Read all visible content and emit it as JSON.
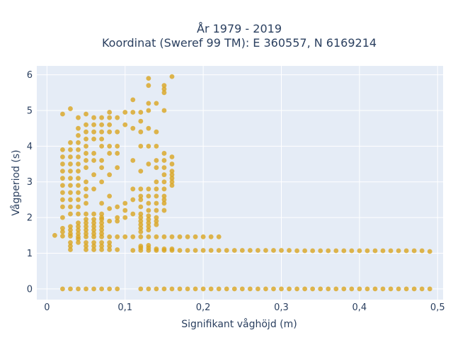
{
  "chart_data": {
    "type": "scatter",
    "title_line1": "År 1979 - 2019",
    "title_line2": "Koordinat (Sweref 99 TM): E 360557, N 6169214",
    "xlabel": "Signifikant våghöjd (m)",
    "ylabel": "Vågperiod (s)",
    "xlim": [
      -0.013,
      0.507
    ],
    "ylim": [
      -0.3,
      6.25
    ],
    "x_ticks": [
      0,
      0.1,
      0.2,
      0.3,
      0.4,
      0.5
    ],
    "x_tick_labels": [
      "0",
      "0,1",
      "0,2",
      "0,3",
      "0,4",
      "0,5"
    ],
    "y_ticks": [
      0,
      1,
      2,
      3,
      4,
      5,
      6
    ],
    "y_tick_labels": [
      "0",
      "1",
      "2",
      "3",
      "4",
      "5",
      "6"
    ],
    "grid": true,
    "legend": "none",
    "marker_color": "#DAA520",
    "plot_bg": "#E5ECF6",
    "series": [
      {
        "points": [
          [
            0.02,
            0.0
          ],
          [
            0.03,
            0.0
          ],
          [
            0.04,
            0.0
          ],
          [
            0.05,
            0.0
          ],
          [
            0.06,
            0.0
          ],
          [
            0.07,
            0.0
          ],
          [
            0.08,
            0.0
          ],
          [
            0.09,
            0.0
          ],
          [
            0.12,
            0.0
          ],
          [
            0.13,
            0.0
          ],
          [
            0.14,
            0.0
          ],
          [
            0.15,
            0.0
          ],
          [
            0.16,
            0.0
          ],
          [
            0.17,
            0.0
          ],
          [
            0.18,
            0.0
          ],
          [
            0.19,
            0.0
          ],
          [
            0.2,
            0.0
          ],
          [
            0.21,
            0.0
          ],
          [
            0.22,
            0.0
          ],
          [
            0.23,
            0.0
          ],
          [
            0.24,
            0.0
          ],
          [
            0.25,
            0.0
          ],
          [
            0.26,
            0.0
          ],
          [
            0.27,
            0.0
          ],
          [
            0.28,
            0.0
          ],
          [
            0.29,
            0.0
          ],
          [
            0.3,
            0.0
          ],
          [
            0.31,
            0.0
          ],
          [
            0.32,
            0.0
          ],
          [
            0.33,
            0.0
          ],
          [
            0.34,
            0.0
          ],
          [
            0.35,
            0.0
          ],
          [
            0.36,
            0.0
          ],
          [
            0.37,
            0.0
          ],
          [
            0.38,
            0.0
          ],
          [
            0.39,
            0.0
          ],
          [
            0.4,
            0.0
          ],
          [
            0.41,
            0.0
          ],
          [
            0.42,
            0.0
          ],
          [
            0.43,
            0.0
          ],
          [
            0.44,
            0.0
          ],
          [
            0.45,
            0.0
          ],
          [
            0.46,
            0.0
          ],
          [
            0.47,
            0.0
          ],
          [
            0.48,
            0.0
          ],
          [
            0.49,
            0.0
          ],
          [
            0.11,
            1.08
          ],
          [
            0.12,
            1.08
          ],
          [
            0.13,
            1.08
          ],
          [
            0.14,
            1.08
          ],
          [
            0.15,
            1.08
          ],
          [
            0.16,
            1.08
          ],
          [
            0.17,
            1.08
          ],
          [
            0.18,
            1.08
          ],
          [
            0.19,
            1.08
          ],
          [
            0.2,
            1.08
          ],
          [
            0.21,
            1.08
          ],
          [
            0.22,
            1.08
          ],
          [
            0.23,
            1.08
          ],
          [
            0.24,
            1.08
          ],
          [
            0.25,
            1.08
          ],
          [
            0.26,
            1.08
          ],
          [
            0.27,
            1.08
          ],
          [
            0.28,
            1.08
          ],
          [
            0.29,
            1.08
          ],
          [
            0.3,
            1.08
          ],
          [
            0.31,
            1.08
          ],
          [
            0.32,
            1.07
          ],
          [
            0.33,
            1.07
          ],
          [
            0.34,
            1.07
          ],
          [
            0.35,
            1.07
          ],
          [
            0.36,
            1.07
          ],
          [
            0.37,
            1.07
          ],
          [
            0.38,
            1.07
          ],
          [
            0.39,
            1.07
          ],
          [
            0.4,
            1.07
          ],
          [
            0.41,
            1.07
          ],
          [
            0.42,
            1.07
          ],
          [
            0.43,
            1.07
          ],
          [
            0.44,
            1.07
          ],
          [
            0.45,
            1.07
          ],
          [
            0.46,
            1.07
          ],
          [
            0.47,
            1.07
          ],
          [
            0.48,
            1.07
          ],
          [
            0.49,
            1.05
          ],
          [
            0.12,
            1.15
          ],
          [
            0.13,
            1.15
          ],
          [
            0.14,
            1.12
          ],
          [
            0.15,
            1.12
          ],
          [
            0.16,
            1.12
          ],
          [
            0.12,
            1.2
          ],
          [
            0.13,
            1.22
          ],
          [
            0.01,
            1.5
          ],
          [
            0.02,
            1.48
          ],
          [
            0.03,
            1.48
          ],
          [
            0.04,
            1.46
          ],
          [
            0.05,
            1.46
          ],
          [
            0.06,
            1.46
          ],
          [
            0.07,
            1.46
          ],
          [
            0.08,
            1.46
          ],
          [
            0.09,
            1.46
          ],
          [
            0.1,
            1.46
          ],
          [
            0.11,
            1.46
          ],
          [
            0.12,
            1.46
          ],
          [
            0.13,
            1.46
          ],
          [
            0.14,
            1.46
          ],
          [
            0.15,
            1.46
          ],
          [
            0.16,
            1.46
          ],
          [
            0.17,
            1.46
          ],
          [
            0.18,
            1.46
          ],
          [
            0.19,
            1.46
          ],
          [
            0.2,
            1.46
          ],
          [
            0.21,
            1.46
          ],
          [
            0.22,
            1.46
          ],
          [
            0.02,
            1.6
          ],
          [
            0.02,
            1.7
          ],
          [
            0.03,
            1.55
          ],
          [
            0.03,
            1.65
          ],
          [
            0.03,
            1.75
          ],
          [
            0.03,
            1.2
          ],
          [
            0.03,
            1.1
          ],
          [
            0.03,
            1.3
          ],
          [
            0.04,
            1.3
          ],
          [
            0.04,
            1.4
          ],
          [
            0.04,
            1.55
          ],
          [
            0.04,
            1.65
          ],
          [
            0.04,
            1.75
          ],
          [
            0.04,
            1.85
          ],
          [
            0.05,
            1.1
          ],
          [
            0.05,
            1.2
          ],
          [
            0.05,
            1.3
          ],
          [
            0.05,
            1.55
          ],
          [
            0.05,
            1.65
          ],
          [
            0.05,
            1.75
          ],
          [
            0.05,
            1.85
          ],
          [
            0.05,
            1.95
          ],
          [
            0.05,
            2.1
          ],
          [
            0.06,
            1.1
          ],
          [
            0.06,
            1.2
          ],
          [
            0.06,
            1.3
          ],
          [
            0.06,
            1.55
          ],
          [
            0.06,
            1.65
          ],
          [
            0.06,
            1.75
          ],
          [
            0.06,
            1.85
          ],
          [
            0.06,
            1.95
          ],
          [
            0.06,
            2.1
          ],
          [
            0.07,
            1.1
          ],
          [
            0.07,
            1.2
          ],
          [
            0.07,
            1.3
          ],
          [
            0.07,
            1.55
          ],
          [
            0.07,
            1.65
          ],
          [
            0.07,
            1.75
          ],
          [
            0.07,
            1.85
          ],
          [
            0.07,
            1.95
          ],
          [
            0.07,
            2.1
          ],
          [
            0.08,
            1.1
          ],
          [
            0.08,
            1.2
          ],
          [
            0.08,
            1.3
          ],
          [
            0.08,
            1.9
          ],
          [
            0.08,
            2.25
          ],
          [
            0.09,
            1.1
          ],
          [
            0.09,
            1.9
          ],
          [
            0.12,
            1.6
          ],
          [
            0.12,
            1.7
          ],
          [
            0.12,
            1.8
          ],
          [
            0.12,
            1.9
          ],
          [
            0.12,
            2.0
          ],
          [
            0.12,
            2.1
          ],
          [
            0.12,
            2.3
          ],
          [
            0.12,
            2.5
          ],
          [
            0.12,
            2.6
          ],
          [
            0.13,
            1.65
          ],
          [
            0.13,
            1.75
          ],
          [
            0.13,
            1.85
          ],
          [
            0.13,
            1.95
          ],
          [
            0.13,
            2.05
          ],
          [
            0.13,
            2.2
          ],
          [
            0.13,
            2.4
          ],
          [
            0.13,
            2.6
          ],
          [
            0.13,
            2.8
          ],
          [
            0.14,
            1.8
          ],
          [
            0.14,
            1.9
          ],
          [
            0.14,
            2.0
          ],
          [
            0.14,
            2.2
          ],
          [
            0.14,
            2.4
          ],
          [
            0.14,
            2.6
          ],
          [
            0.14,
            2.8
          ],
          [
            0.14,
            3.0
          ],
          [
            0.15,
            2.2
          ],
          [
            0.15,
            2.4
          ],
          [
            0.15,
            2.6
          ],
          [
            0.15,
            2.8
          ],
          [
            0.15,
            3.0
          ],
          [
            0.15,
            3.2
          ],
          [
            0.15,
            3.4
          ],
          [
            0.15,
            3.6
          ],
          [
            0.16,
            2.9
          ],
          [
            0.16,
            3.1
          ],
          [
            0.16,
            3.3
          ],
          [
            0.16,
            3.5
          ],
          [
            0.16,
            3.7
          ],
          [
            0.02,
            2.3
          ],
          [
            0.02,
            2.5
          ],
          [
            0.02,
            2.7
          ],
          [
            0.02,
            2.9
          ],
          [
            0.02,
            3.1
          ],
          [
            0.02,
            3.3
          ],
          [
            0.02,
            3.5
          ],
          [
            0.02,
            3.7
          ],
          [
            0.02,
            3.9
          ],
          [
            0.02,
            4.9
          ],
          [
            0.02,
            2.0
          ],
          [
            0.03,
            2.1
          ],
          [
            0.03,
            2.3
          ],
          [
            0.03,
            2.5
          ],
          [
            0.03,
            2.7
          ],
          [
            0.03,
            2.9
          ],
          [
            0.03,
            3.1
          ],
          [
            0.03,
            3.3
          ],
          [
            0.03,
            3.5
          ],
          [
            0.03,
            3.7
          ],
          [
            0.03,
            3.9
          ],
          [
            0.03,
            4.1
          ],
          [
            0.03,
            5.05
          ],
          [
            0.04,
            2.1
          ],
          [
            0.04,
            2.3
          ],
          [
            0.04,
            2.5
          ],
          [
            0.04,
            2.7
          ],
          [
            0.04,
            2.9
          ],
          [
            0.04,
            3.1
          ],
          [
            0.04,
            3.3
          ],
          [
            0.04,
            3.5
          ],
          [
            0.04,
            3.7
          ],
          [
            0.04,
            3.9
          ],
          [
            0.04,
            4.1
          ],
          [
            0.04,
            4.3
          ],
          [
            0.04,
            4.5
          ],
          [
            0.04,
            4.8
          ],
          [
            0.05,
            2.4
          ],
          [
            0.05,
            2.6
          ],
          [
            0.05,
            2.8
          ],
          [
            0.05,
            3.0
          ],
          [
            0.05,
            3.4
          ],
          [
            0.05,
            3.6
          ],
          [
            0.05,
            3.8
          ],
          [
            0.05,
            4.0
          ],
          [
            0.05,
            4.2
          ],
          [
            0.05,
            4.4
          ],
          [
            0.05,
            4.6
          ],
          [
            0.05,
            4.9
          ],
          [
            0.06,
            2.8
          ],
          [
            0.06,
            3.2
          ],
          [
            0.06,
            3.6
          ],
          [
            0.06,
            3.8
          ],
          [
            0.06,
            4.2
          ],
          [
            0.06,
            4.4
          ],
          [
            0.06,
            4.6
          ],
          [
            0.06,
            4.8
          ],
          [
            0.07,
            2.4
          ],
          [
            0.07,
            3.0
          ],
          [
            0.07,
            3.4
          ],
          [
            0.07,
            3.6
          ],
          [
            0.07,
            4.0
          ],
          [
            0.07,
            4.2
          ],
          [
            0.07,
            4.4
          ],
          [
            0.07,
            4.6
          ],
          [
            0.07,
            4.8
          ],
          [
            0.07,
            2.0
          ],
          [
            0.08,
            2.6
          ],
          [
            0.08,
            3.2
          ],
          [
            0.08,
            3.8
          ],
          [
            0.08,
            4.0
          ],
          [
            0.08,
            4.4
          ],
          [
            0.08,
            4.6
          ],
          [
            0.08,
            4.8
          ],
          [
            0.08,
            4.95
          ],
          [
            0.09,
            3.4
          ],
          [
            0.09,
            3.8
          ],
          [
            0.09,
            4.0
          ],
          [
            0.09,
            4.4
          ],
          [
            0.09,
            4.8
          ],
          [
            0.09,
            2.3
          ],
          [
            0.09,
            2.0
          ],
          [
            0.1,
            4.95
          ],
          [
            0.1,
            4.6
          ],
          [
            0.1,
            2.2
          ],
          [
            0.1,
            2.0
          ],
          [
            0.1,
            2.4
          ],
          [
            0.11,
            4.95
          ],
          [
            0.11,
            4.5
          ],
          [
            0.11,
            3.6
          ],
          [
            0.11,
            2.8
          ],
          [
            0.11,
            2.5
          ],
          [
            0.11,
            2.1
          ],
          [
            0.11,
            5.3
          ],
          [
            0.12,
            4.95
          ],
          [
            0.12,
            4.7
          ],
          [
            0.12,
            4.4
          ],
          [
            0.12,
            4.0
          ],
          [
            0.12,
            3.3
          ],
          [
            0.12,
            2.8
          ],
          [
            0.13,
            5.9
          ],
          [
            0.13,
            5.7
          ],
          [
            0.13,
            5.2
          ],
          [
            0.13,
            5.0
          ],
          [
            0.13,
            4.5
          ],
          [
            0.13,
            4.0
          ],
          [
            0.13,
            3.5
          ],
          [
            0.14,
            5.2
          ],
          [
            0.14,
            4.4
          ],
          [
            0.14,
            4.0
          ],
          [
            0.14,
            3.6
          ],
          [
            0.14,
            3.4
          ],
          [
            0.15,
            5.7
          ],
          [
            0.15,
            5.6
          ],
          [
            0.15,
            5.5
          ],
          [
            0.15,
            5.0
          ],
          [
            0.15,
            3.8
          ],
          [
            0.15,
            2.5
          ],
          [
            0.16,
            5.95
          ],
          [
            0.16,
            3.0
          ],
          [
            0.16,
            3.2
          ]
        ]
      }
    ]
  }
}
